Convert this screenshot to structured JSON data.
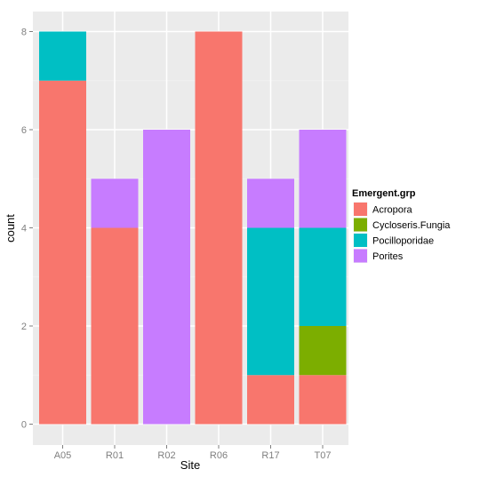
{
  "chart_data": {
    "type": "bar",
    "stacked": true,
    "xlabel": "Site",
    "ylabel": "count",
    "categories": [
      "A05",
      "R01",
      "R02",
      "R06",
      "R17",
      "T07"
    ],
    "ylim": [
      0,
      8
    ],
    "yticks": [
      0,
      2,
      4,
      6,
      8
    ],
    "grid": true,
    "legend": {
      "title": "Emergent.grp",
      "position": "right"
    },
    "series": [
      {
        "name": "Acropora",
        "color": "#F8766D",
        "values": [
          7,
          4,
          0,
          8,
          1,
          1
        ]
      },
      {
        "name": "Cycloseris.Fungia",
        "color": "#7CAE00",
        "values": [
          0,
          0,
          0,
          0,
          0,
          1
        ]
      },
      {
        "name": "Pocilloporidae",
        "color": "#00BFC4",
        "values": [
          1,
          0,
          0,
          0,
          3,
          2
        ]
      },
      {
        "name": "Porites",
        "color": "#C77CFF",
        "values": [
          0,
          1,
          6,
          0,
          1,
          2
        ]
      }
    ]
  }
}
